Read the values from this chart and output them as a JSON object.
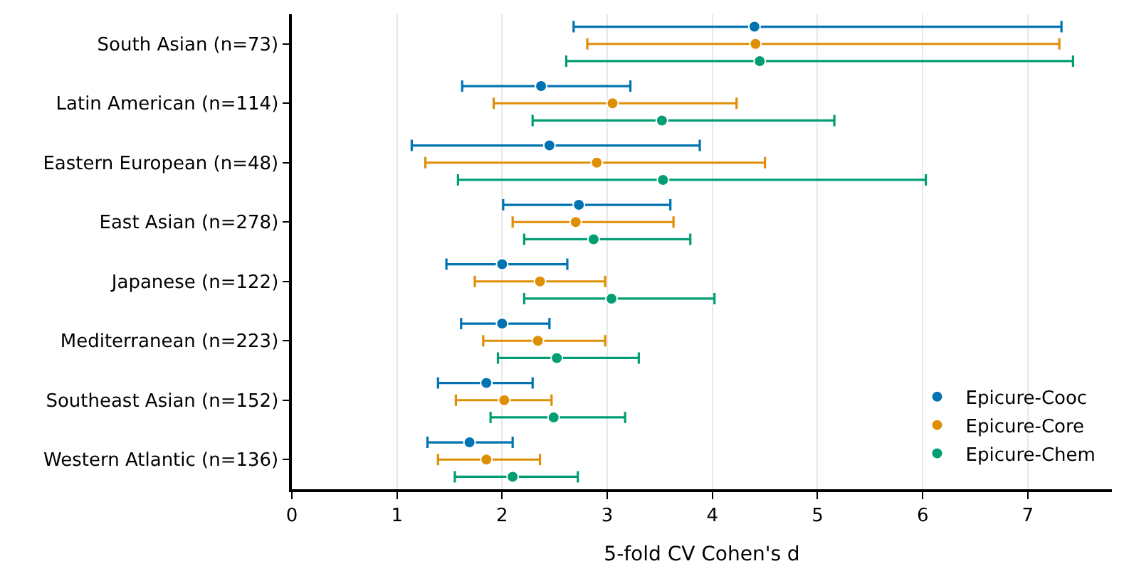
{
  "chart_data": {
    "type": "scatter",
    "orientation": "horizontal",
    "xlabel": "5-fold CV Cohen's d",
    "categories": [
      "South Asian (n=73)",
      "Latin American (n=114)",
      "Eastern European (n=48)",
      "East Asian (n=278)",
      "Japanese (n=122)",
      "Mediterranean (n=223)",
      "Southeast Asian (n=152)",
      "Western Atlantic (n=136)"
    ],
    "series": [
      {
        "name": "Epicure-Cooc",
        "color": "#0173b2",
        "values": [
          4.4,
          2.37,
          2.45,
          2.73,
          2.0,
          2.0,
          1.85,
          1.69
        ],
        "errors": [
          [
            2.68,
            7.32
          ],
          [
            1.62,
            3.22
          ],
          [
            1.14,
            3.88
          ],
          [
            2.01,
            3.6
          ],
          [
            1.47,
            2.62
          ],
          [
            1.61,
            2.45
          ],
          [
            1.39,
            2.29
          ],
          [
            1.29,
            2.1
          ]
        ]
      },
      {
        "name": "Epicure-Core",
        "color": "#de8f05",
        "values": [
          4.41,
          3.05,
          2.9,
          2.7,
          2.36,
          2.34,
          2.02,
          1.85
        ],
        "errors": [
          [
            2.81,
            7.3
          ],
          [
            1.92,
            4.23
          ],
          [
            1.27,
            4.5
          ],
          [
            2.1,
            3.63
          ],
          [
            1.74,
            2.98
          ],
          [
            1.82,
            2.98
          ],
          [
            1.56,
            2.47
          ],
          [
            1.39,
            2.36
          ]
        ]
      },
      {
        "name": "Epicure-Chem",
        "color": "#029e73",
        "values": [
          4.45,
          3.52,
          3.53,
          2.87,
          3.04,
          2.52,
          2.49,
          2.1
        ],
        "errors": [
          [
            2.61,
            7.43
          ],
          [
            2.29,
            5.16
          ],
          [
            1.58,
            6.03
          ],
          [
            2.21,
            3.79
          ],
          [
            2.21,
            4.02
          ],
          [
            1.96,
            3.3
          ],
          [
            1.89,
            3.17
          ],
          [
            1.55,
            2.72
          ]
        ]
      }
    ],
    "xlim": [
      0,
      7.8
    ],
    "xticks": [
      0,
      1,
      2,
      3,
      4,
      5,
      6,
      7
    ],
    "grid": "x",
    "legend": "bottom right",
    "marker": "circle"
  }
}
